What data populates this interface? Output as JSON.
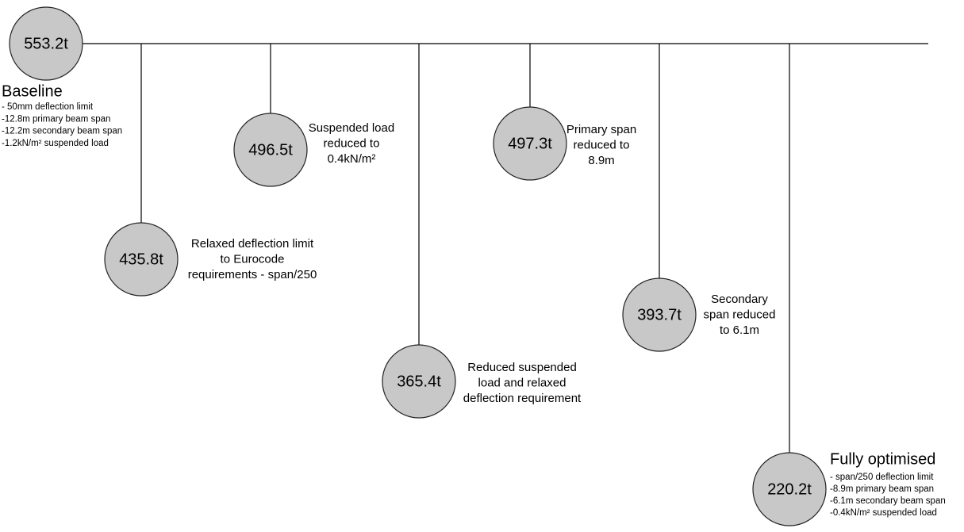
{
  "nodes": [
    {
      "label": "553.2t",
      "title": "Baseline",
      "notes": [
        "- 50mm deflection limit",
        "-12.8m primary beam span",
        "-12.2m secondary beam span",
        "-1.2kN/m² suspended load"
      ]
    },
    {
      "label": "435.8t",
      "description": [
        "Relaxed deflection limit",
        "to Eurocode",
        "requirements - span/250"
      ]
    },
    {
      "label": "496.5t",
      "description": [
        "Suspended load",
        "reduced to",
        "0.4kN/m²"
      ]
    },
    {
      "label": "365.4t",
      "description": [
        "Reduced suspended",
        "load and relaxed",
        "deflection requirement"
      ]
    },
    {
      "label": "497.3t",
      "description": [
        "Primary span",
        "reduced to",
        "8.9m"
      ]
    },
    {
      "label": "393.7t",
      "description": [
        "Secondary",
        "span reduced",
        "to 6.1m"
      ]
    },
    {
      "label": "220.2t",
      "title": "Fully optimised",
      "notes": [
        "- span/250 deflection limit",
        "-8.9m primary beam span",
        "-6.1m secondary beam span",
        "-0.4kN/m² suspended load"
      ]
    }
  ]
}
